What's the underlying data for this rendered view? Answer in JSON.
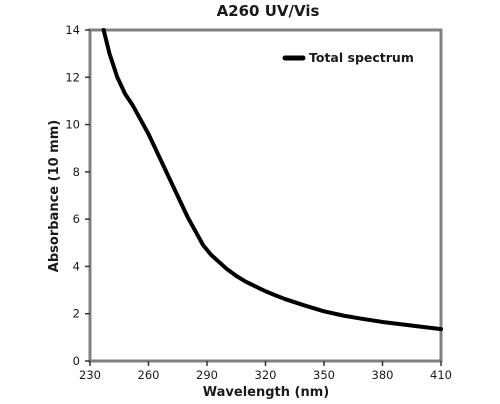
{
  "chart_data": {
    "type": "line",
    "title": "A260 UV/Vis",
    "xlabel": "Wavelength (nm)",
    "ylabel": "Absorbance (10 mm)",
    "xlim": [
      230,
      410
    ],
    "ylim": [
      0,
      14
    ],
    "xticks": [
      230,
      260,
      290,
      320,
      350,
      380,
      410
    ],
    "yticks": [
      0,
      2,
      4,
      6,
      8,
      10,
      12,
      14
    ],
    "legend_position": "top-right",
    "grid": false,
    "series": [
      {
        "name": "Total spectrum",
        "color": "#000000",
        "x": [
          237,
          240,
          244,
          248,
          252,
          256,
          260,
          264,
          268,
          272,
          276,
          280,
          284,
          288,
          292,
          296,
          300,
          305,
          310,
          315,
          320,
          325,
          330,
          340,
          350,
          360,
          370,
          380,
          390,
          400,
          410
        ],
        "y": [
          14.0,
          13.0,
          12.0,
          11.3,
          10.8,
          10.2,
          9.6,
          8.9,
          8.2,
          7.5,
          6.8,
          6.1,
          5.5,
          4.9,
          4.5,
          4.2,
          3.9,
          3.6,
          3.35,
          3.15,
          2.95,
          2.78,
          2.62,
          2.35,
          2.1,
          1.92,
          1.78,
          1.65,
          1.55,
          1.45,
          1.35
        ]
      }
    ]
  }
}
